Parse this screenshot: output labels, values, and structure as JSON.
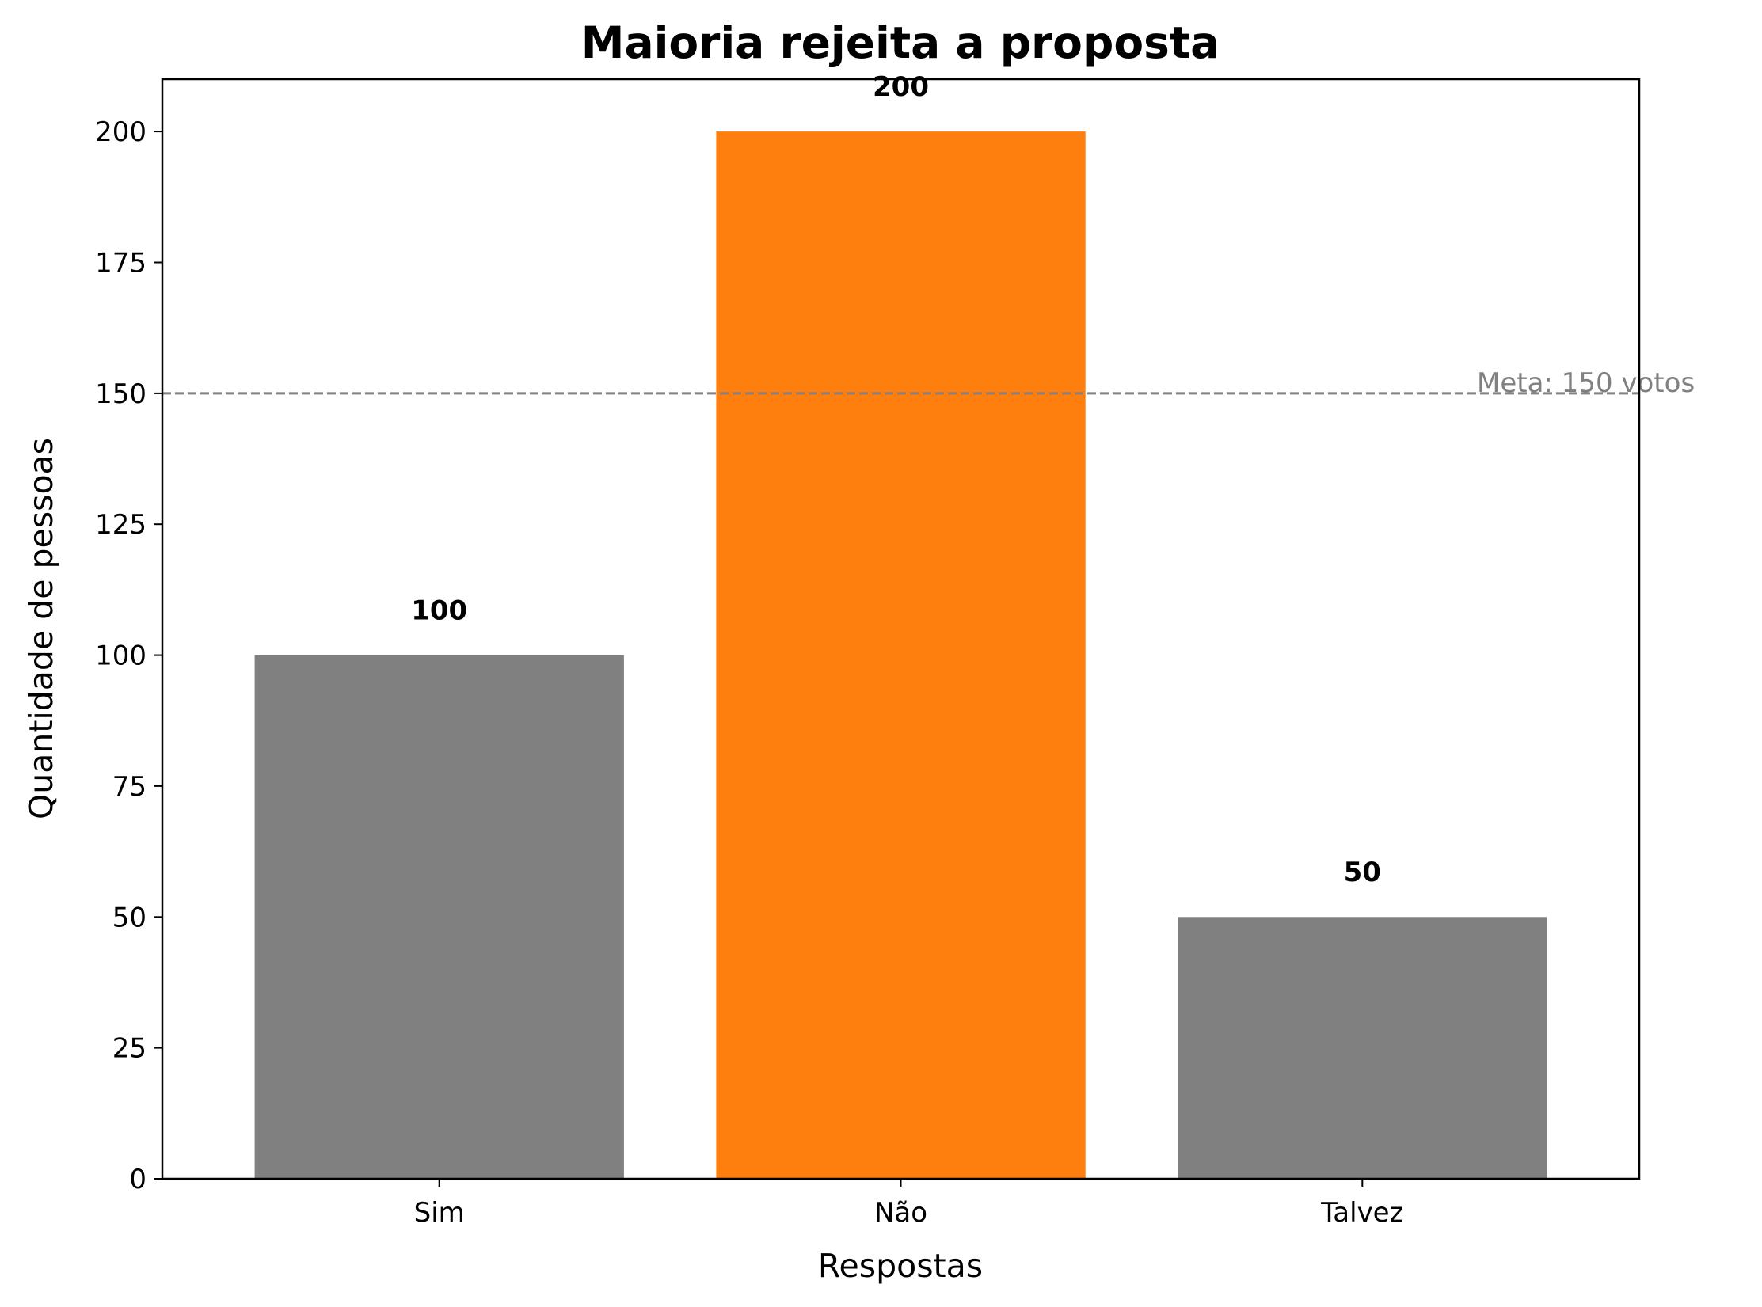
{
  "chart_data": {
    "type": "bar",
    "title": "Maioria rejeita a proposta",
    "xlabel": "Respostas",
    "ylabel": "Quantidade de pessoas",
    "categories": [
      "Sim",
      "Não",
      "Talvez"
    ],
    "values": [
      100,
      200,
      50
    ],
    "value_labels": [
      "100",
      "200",
      "50"
    ],
    "colors": [
      "#808080",
      "#ff7f0e",
      "#808080"
    ],
    "ylim": [
      0,
      210
    ],
    "yticks": [
      0,
      25,
      50,
      75,
      100,
      125,
      150,
      175,
      200
    ],
    "grid": false,
    "reference_line": {
      "value": 150,
      "label": "Meta: 150 votos",
      "color": "#808080",
      "style": "dashed"
    }
  }
}
